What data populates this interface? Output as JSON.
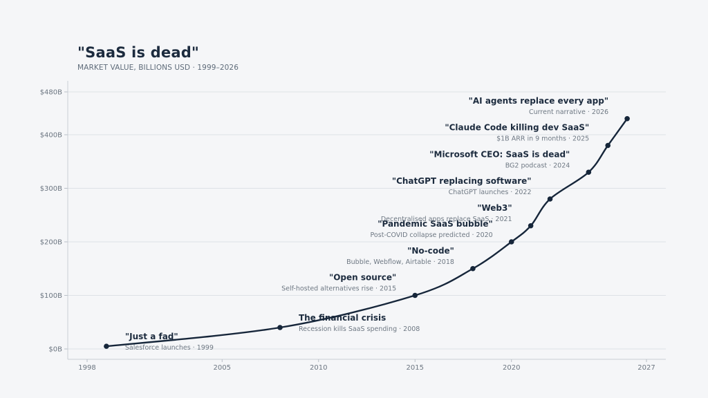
{
  "chart_data": {
    "type": "line",
    "title": "\"SaaS is dead\"",
    "subtitle": "MARKET VALUE, BILLIONS USD · 1999–2026",
    "xlim": [
      1998,
      2027
    ],
    "ylim": [
      0,
      480
    ],
    "x_ticks": [
      {
        "value": 1998,
        "label": "1998"
      },
      {
        "value": 2005,
        "label": "2005"
      },
      {
        "value": 2010,
        "label": "2010"
      },
      {
        "value": 2015,
        "label": "2015"
      },
      {
        "value": 2020,
        "label": "2020"
      },
      {
        "value": 2027,
        "label": "2027"
      }
    ],
    "y_ticks": [
      {
        "value": 0,
        "label": "$0B"
      },
      {
        "value": 100,
        "label": "$100B"
      },
      {
        "value": 200,
        "label": "$200B"
      },
      {
        "value": 300,
        "label": "$300B"
      },
      {
        "value": 400,
        "label": "$400B"
      },
      {
        "value": 480,
        "label": "$480B"
      }
    ],
    "grid": true,
    "line_color": "#16263a",
    "points": [
      {
        "x": 1999,
        "y": 5,
        "title": "\"Just a fad\"",
        "subtitle": "Salesforce launches · 1999",
        "anchor": "start"
      },
      {
        "x": 2008,
        "y": 40,
        "title": "The financial crisis",
        "subtitle": "Recession kills SaaS spending · 2008",
        "anchor": "start"
      },
      {
        "x": 2015,
        "y": 100,
        "title": "\"Open source\"",
        "subtitle": "Self-hosted alternatives rise · 2015",
        "anchor": "end"
      },
      {
        "x": 2018,
        "y": 150,
        "title": "\"No-code\"",
        "subtitle": "Bubble, Webflow, Airtable · 2018",
        "anchor": "end"
      },
      {
        "x": 2020,
        "y": 200,
        "title": "\"Pandemic SaaS bubble\"",
        "subtitle": "Post-COVID collapse predicted · 2020",
        "anchor": "end"
      },
      {
        "x": 2021,
        "y": 230,
        "title": "\"Web3\"",
        "subtitle": "Decentralised apps replace SaaS · 2021",
        "anchor": "end"
      },
      {
        "x": 2022,
        "y": 280,
        "title": "\"ChatGPT replacing software\"",
        "subtitle": "ChatGPT launches · 2022",
        "anchor": "end"
      },
      {
        "x": 2024,
        "y": 330,
        "title": "\"Microsoft CEO: SaaS is dead\"",
        "subtitle": "BG2 podcast · 2024",
        "anchor": "end"
      },
      {
        "x": 2025,
        "y": 380,
        "title": "\"Claude Code killing dev SaaS\"",
        "subtitle": "$1B ARR in 9 months · 2025",
        "anchor": "end"
      },
      {
        "x": 2026,
        "y": 430,
        "title": "\"AI agents replace every app\"",
        "subtitle": "Current narrative · 2026",
        "anchor": "end"
      }
    ]
  }
}
